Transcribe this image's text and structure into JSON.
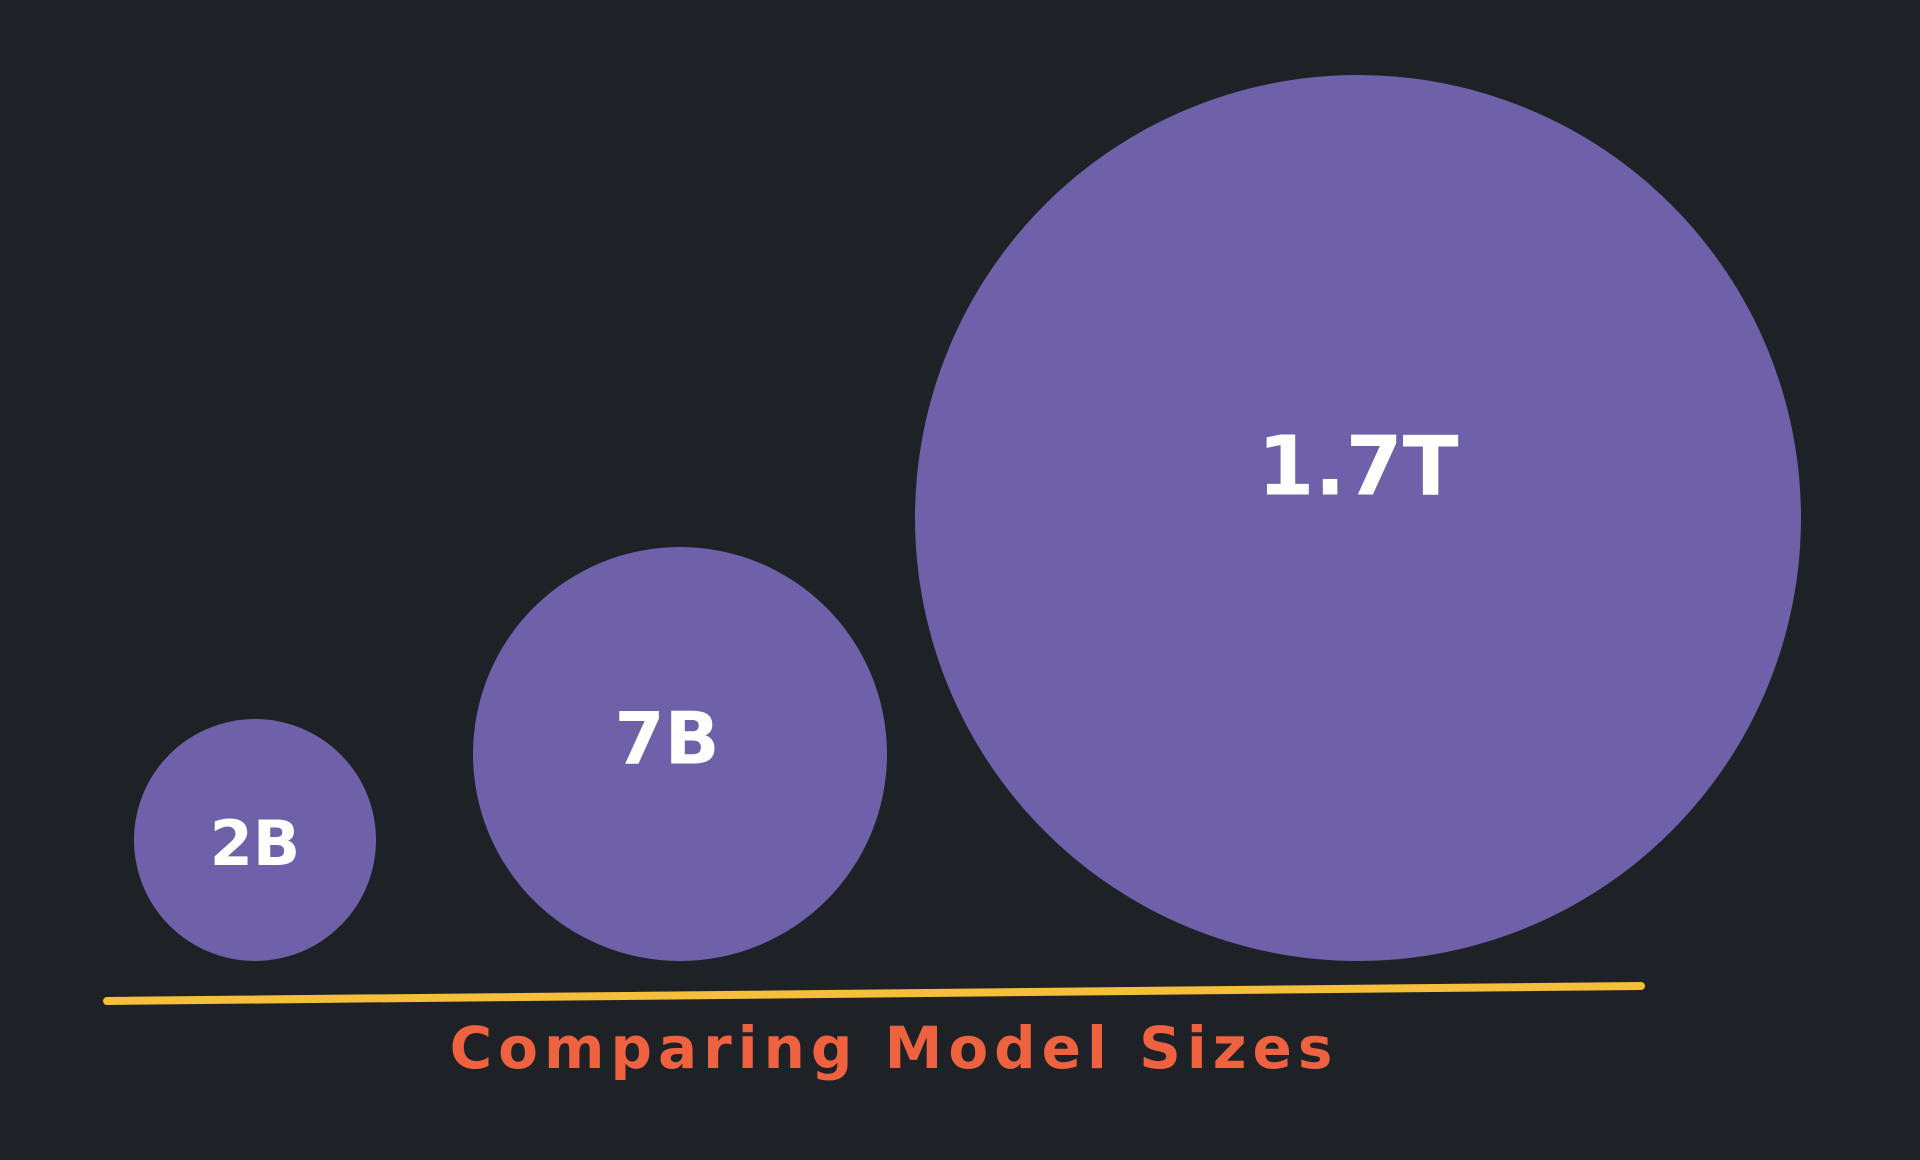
{
  "nodes": [
    {
      "label": "2B"
    },
    {
      "label": "7B"
    },
    {
      "label": "1.7T"
    }
  ],
  "caption": "Comparing Model Sizes"
}
